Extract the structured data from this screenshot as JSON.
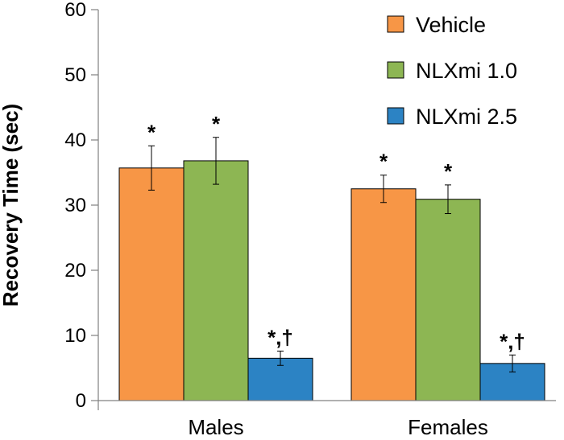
{
  "chart_data": {
    "type": "bar",
    "title": "",
    "xlabel": "",
    "ylabel": "Recovery Time (sec)",
    "ylim": [
      0,
      60
    ],
    "yticks": [
      0,
      10,
      20,
      30,
      40,
      50,
      60
    ],
    "categories": [
      "Males",
      "Females"
    ],
    "legend_position": "top-right",
    "series": [
      {
        "name": "Vehicle",
        "color": "#f79646",
        "values": [
          35.7,
          32.5
        ],
        "errors": [
          3.4,
          2.1
        ],
        "annotations": [
          "*",
          "*"
        ]
      },
      {
        "name": "NLXmi 1.0",
        "color": "#8db653",
        "values": [
          36.8,
          30.9
        ],
        "errors": [
          3.6,
          2.2
        ],
        "annotations": [
          "*",
          "*"
        ]
      },
      {
        "name": "NLXmi 2.5",
        "color": "#2c83c4",
        "values": [
          6.5,
          5.7
        ],
        "errors": [
          1.1,
          1.3
        ],
        "annotations": [
          "*,†",
          "*,†"
        ]
      }
    ]
  }
}
